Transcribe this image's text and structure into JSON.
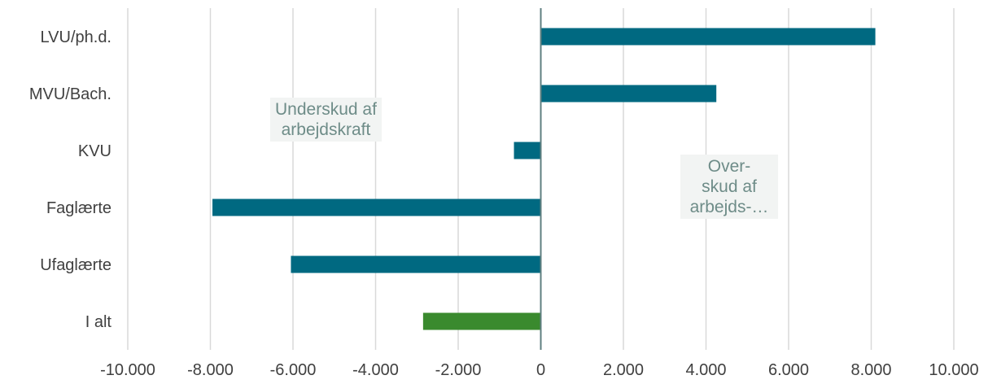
{
  "chart_data": {
    "type": "bar",
    "orientation": "horizontal",
    "categories": [
      "LVU/ph.d.",
      "MVU/Bach.",
      "KVU",
      "Faglærte",
      "Ufaglærte",
      "I alt"
    ],
    "values": [
      8100,
      4250,
      -650,
      -7950,
      -6050,
      -2850
    ],
    "colors": [
      "#006981",
      "#006981",
      "#006981",
      "#006981",
      "#006981",
      "#3a8a2e"
    ],
    "xlim": [
      -10000,
      10000
    ],
    "xticks": [
      -10000,
      -8000,
      -6000,
      -4000,
      -2000,
      0,
      2000,
      4000,
      6000,
      8000,
      10000
    ],
    "xtick_labels": [
      "-10.000",
      "-8.000",
      "-6.000",
      "-4.000",
      "-2.000",
      "0",
      "2.000",
      "4.000",
      "6.000",
      "8.000",
      "10.000"
    ],
    "grid": true,
    "annotations": {
      "underskud": "Underskud af\narbejdskraft",
      "overskud": "Over-\nskud af\narbejds-…"
    },
    "title": "",
    "xlabel": "",
    "ylabel": ""
  }
}
